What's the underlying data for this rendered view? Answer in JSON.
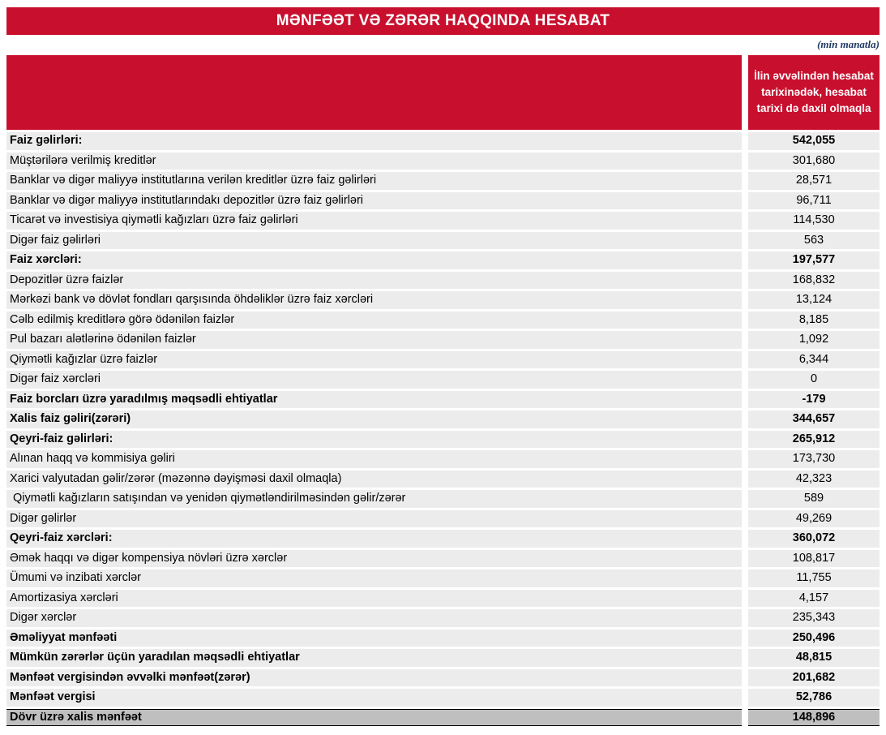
{
  "colors": {
    "accent_red": "#C8102E",
    "row_gray": "#ECECEC",
    "total_row_gray": "#BFBFBF",
    "unit_note_color": "#1F3864"
  },
  "header": {
    "title": "MƏNFƏƏT VƏ ZƏRƏR HAQQINDA HESABAT",
    "unit_note": "(min manatla)"
  },
  "table": {
    "value_column_header": "İlin əvvəlindən hesabat tarixinədək, hesabat tarixi də daxil olmaqla",
    "rows": [
      {
        "label": "Faiz gəlirləri:",
        "value": "542,055",
        "bold": true,
        "highlight": false
      },
      {
        "label": "Müştərilərə verilmiş kreditlər",
        "value": "301,680",
        "bold": false,
        "highlight": false
      },
      {
        "label": "Banklar və digər maliyyə institutlarına verilən kreditlər üzrə faiz gəlirləri",
        "value": "28,571",
        "bold": false,
        "highlight": false
      },
      {
        "label": "Banklar və digər maliyyə institutlarındakı depozitlər üzrə faiz gəlirləri",
        "value": "96,711",
        "bold": false,
        "highlight": false
      },
      {
        "label": "Ticarət və investisiya qiymətli kağızları üzrə faiz gəlirləri",
        "value": "114,530",
        "bold": false,
        "highlight": false
      },
      {
        "label": "Digər faiz gəlirləri",
        "value": "563",
        "bold": false,
        "highlight": false
      },
      {
        "label": "Faiz xərcləri:",
        "value": "197,577",
        "bold": true,
        "highlight": false
      },
      {
        "label": "Depozitlər üzrə faizlər",
        "value": "168,832",
        "bold": false,
        "highlight": false
      },
      {
        "label": "Mərkəzi bank və dövlət fondları qarşısında öhdəliklər üzrə faiz xərcləri",
        "value": "13,124",
        "bold": false,
        "highlight": false
      },
      {
        "label": "Cəlb edilmiş kreditlərə görə ödənilən faizlər",
        "value": "8,185",
        "bold": false,
        "highlight": false
      },
      {
        "label": "Pul bazarı alətlərinə ödənilən faizlər",
        "value": "1,092",
        "bold": false,
        "highlight": false
      },
      {
        "label": "Qiymətli kağızlar üzrə faizlər",
        "value": "6,344",
        "bold": false,
        "highlight": false
      },
      {
        "label": "Digər faiz xərcləri",
        "value": "0",
        "bold": false,
        "highlight": false
      },
      {
        "label": "Faiz borcları üzrə yaradılmış məqsədli ehtiyatlar",
        "value": "-179",
        "bold": true,
        "highlight": false
      },
      {
        "label": "Xalis faiz gəliri(zərəri)",
        "value": "344,657",
        "bold": true,
        "highlight": false
      },
      {
        "label": "Qeyri-faiz gəlirləri:",
        "value": "265,912",
        "bold": true,
        "highlight": false
      },
      {
        "label": "Alınan haqq və kommisiya gəliri",
        "value": "173,730",
        "bold": false,
        "highlight": false
      },
      {
        "label": "Xarici valyutadan gəlir/zərər (məzənnə dəyişməsi daxil olmaqla)",
        "value": "42,323",
        "bold": false,
        "highlight": false
      },
      {
        "label": " Qiymətli kağızların satışından və yenidən qiymətləndirilməsindən gəlir/zərər",
        "value": "589",
        "bold": false,
        "highlight": false
      },
      {
        "label": "Digər gəlirlər",
        "value": "49,269",
        "bold": false,
        "highlight": false
      },
      {
        "label": "Qeyri-faiz xərcləri:",
        "value": "360,072",
        "bold": true,
        "highlight": false
      },
      {
        "label": "Əmək haqqı və digər kompensiya növləri üzrə xərclər",
        "value": "108,817",
        "bold": false,
        "highlight": false
      },
      {
        "label": "Ümumi və inzibati xərclər",
        "value": "11,755",
        "bold": false,
        "highlight": false
      },
      {
        "label": "Amortizasiya xərcləri",
        "value": "4,157",
        "bold": false,
        "highlight": false
      },
      {
        "label": "Digər xərclər",
        "value": "235,343",
        "bold": false,
        "highlight": false
      },
      {
        "label": "Əməliyyat mənfəəti",
        "value": "250,496",
        "bold": true,
        "highlight": false
      },
      {
        "label": "Mümkün zərərlər üçün yaradılan məqsədli ehtiyatlar",
        "value": "48,815",
        "bold": true,
        "highlight": false
      },
      {
        "label": "Mənfəət vergisindən əvvəlki mənfəət(zərər)",
        "value": "201,682",
        "bold": true,
        "highlight": false
      },
      {
        "label": "Mənfəət vergisi",
        "value": "52,786",
        "bold": true,
        "highlight": false
      },
      {
        "label": "Dövr üzrə xalis mənfəət",
        "value": "148,896",
        "bold": true,
        "highlight": true
      }
    ]
  }
}
